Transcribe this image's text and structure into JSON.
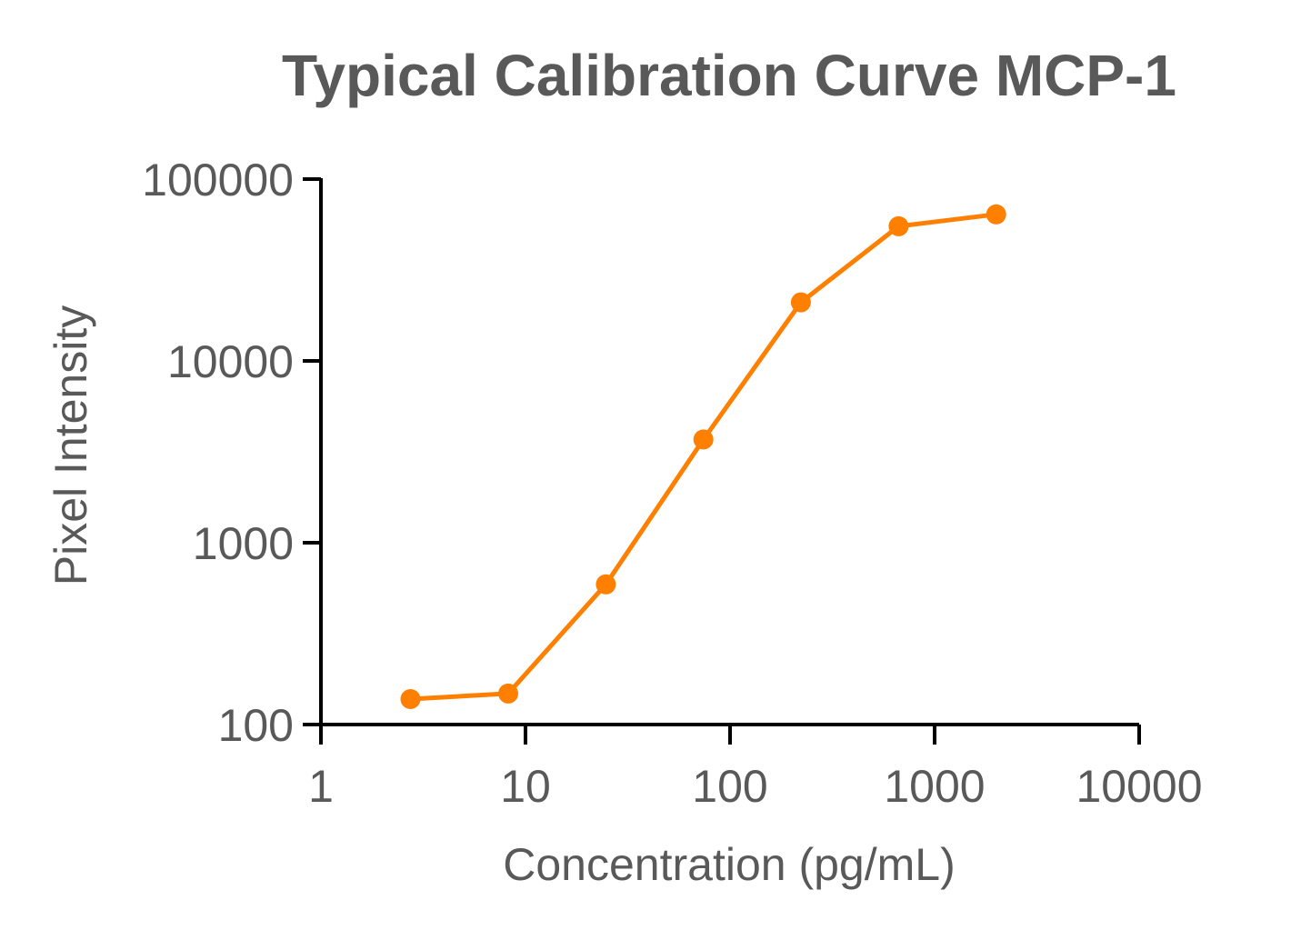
{
  "chart_data": {
    "type": "line",
    "title": "Typical Calibration Curve MCP-1",
    "xlabel": "Concentration (pg/mL)",
    "ylabel": "Pixel Intensity",
    "xscale": "log",
    "yscale": "log",
    "xlim": [
      1,
      10000
    ],
    "ylim": [
      100,
      100000
    ],
    "xticks": [
      "1",
      "10",
      "100",
      "1000",
      "10000"
    ],
    "yticks": [
      "100",
      "1000",
      "10000",
      "100000"
    ],
    "grid": false,
    "legend": "none",
    "series": [
      {
        "color": "#FF7F00",
        "marker": "circle",
        "x": [
          2.74,
          8.23,
          24.7,
          74.1,
          222,
          667,
          2000
        ],
        "y": [
          138,
          148,
          590,
          3700,
          21000,
          55000,
          64000
        ]
      }
    ]
  }
}
